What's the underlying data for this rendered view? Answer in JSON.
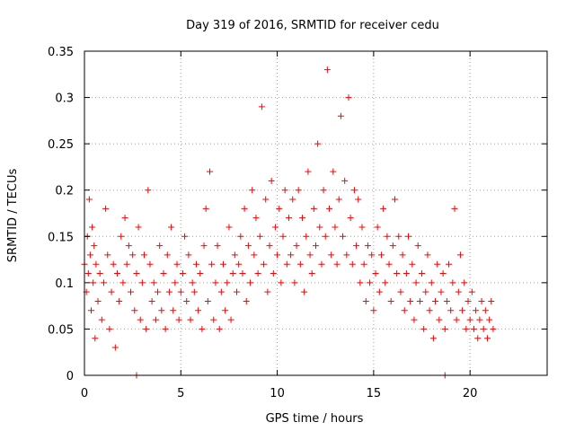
{
  "chart_data": {
    "type": "scatter",
    "title": "Day 319 of 2016, SRMTID for receiver cedu",
    "xlabel": "GPS time / hours",
    "ylabel": "SRMTID / TECUs",
    "xlim": [
      0,
      24
    ],
    "ylim": [
      0,
      0.35
    ],
    "xticks": [
      0,
      5,
      10,
      15,
      20
    ],
    "xtick_labels": [
      "0",
      "5",
      "10",
      "15",
      "20"
    ],
    "yticks": [
      0,
      0.05,
      0.1,
      0.15,
      0.2,
      0.25,
      0.3,
      0.35
    ],
    "ytick_labels": [
      "0",
      "0.05",
      "0.1",
      "0.15",
      "0.2",
      "0.25",
      "0.3",
      "0.35"
    ],
    "grid": true,
    "marker": "+",
    "series": [
      {
        "name": "SRMTID",
        "color": "#ff0000",
        "points": [
          [
            0.0,
            0.12
          ],
          [
            0.1,
            0.09
          ],
          [
            0.15,
            0.15
          ],
          [
            0.2,
            0.11
          ],
          [
            0.25,
            0.19
          ],
          [
            0.3,
            0.13
          ],
          [
            0.35,
            0.07
          ],
          [
            0.4,
            0.16
          ],
          [
            0.45,
            0.1
          ],
          [
            0.5,
            0.14
          ],
          [
            0.55,
            0.04
          ],
          [
            0.6,
            0.12
          ],
          [
            0.7,
            0.08
          ],
          [
            0.8,
            0.11
          ],
          [
            0.9,
            0.06
          ],
          [
            1.0,
            0.1
          ],
          [
            1.1,
            0.18
          ],
          [
            1.2,
            0.13
          ],
          [
            1.3,
            0.05
          ],
          [
            1.4,
            0.09
          ],
          [
            1.5,
            0.12
          ],
          [
            1.6,
            0.03
          ],
          [
            1.7,
            0.11
          ],
          [
            1.8,
            0.08
          ],
          [
            1.9,
            0.15
          ],
          [
            2.0,
            0.1
          ],
          [
            2.1,
            0.17
          ],
          [
            2.2,
            0.12
          ],
          [
            2.3,
            0.14
          ],
          [
            2.4,
            0.09
          ],
          [
            2.5,
            0.13
          ],
          [
            2.6,
            0.07
          ],
          [
            2.7,
            0.11
          ],
          [
            2.8,
            0.16
          ],
          [
            2.9,
            0.06
          ],
          [
            3.0,
            0.1
          ],
          [
            3.1,
            0.13
          ],
          [
            3.2,
            0.05
          ],
          [
            3.3,
            0.2
          ],
          [
            3.4,
            0.12
          ],
          [
            3.5,
            0.08
          ],
          [
            3.6,
            0.1
          ],
          [
            3.7,
            0.06
          ],
          [
            3.8,
            0.09
          ],
          [
            3.9,
            0.14
          ],
          [
            4.0,
            0.07
          ],
          [
            4.1,
            0.11
          ],
          [
            4.2,
            0.05
          ],
          [
            4.3,
            0.13
          ],
          [
            4.4,
            0.09
          ],
          [
            4.5,
            0.16
          ],
          [
            4.6,
            0.07
          ],
          [
            4.7,
            0.1
          ],
          [
            4.8,
            0.12
          ],
          [
            4.9,
            0.06
          ],
          [
            5.0,
            0.09
          ],
          [
            5.1,
            0.11
          ],
          [
            5.2,
            0.15
          ],
          [
            5.3,
            0.08
          ],
          [
            5.4,
            0.13
          ],
          [
            5.5,
            0.06
          ],
          [
            5.6,
            0.1
          ],
          [
            5.7,
            0.09
          ],
          [
            5.8,
            0.12
          ],
          [
            5.9,
            0.07
          ],
          [
            6.0,
            0.11
          ],
          [
            6.1,
            0.05
          ],
          [
            6.2,
            0.14
          ],
          [
            6.3,
            0.18
          ],
          [
            6.4,
            0.08
          ],
          [
            6.5,
            0.22
          ],
          [
            6.6,
            0.12
          ],
          [
            6.7,
            0.06
          ],
          [
            6.8,
            0.1
          ],
          [
            6.9,
            0.14
          ],
          [
            7.0,
            0.05
          ],
          [
            7.1,
            0.09
          ],
          [
            7.2,
            0.12
          ],
          [
            7.3,
            0.07
          ],
          [
            7.4,
            0.1
          ],
          [
            7.5,
            0.16
          ],
          [
            7.6,
            0.06
          ],
          [
            7.7,
            0.11
          ],
          [
            7.8,
            0.13
          ],
          [
            7.9,
            0.09
          ],
          [
            8.0,
            0.12
          ],
          [
            8.1,
            0.15
          ],
          [
            8.2,
            0.11
          ],
          [
            8.3,
            0.18
          ],
          [
            8.4,
            0.08
          ],
          [
            8.5,
            0.14
          ],
          [
            8.6,
            0.1
          ],
          [
            8.7,
            0.2
          ],
          [
            8.8,
            0.13
          ],
          [
            8.9,
            0.17
          ],
          [
            9.0,
            0.11
          ],
          [
            9.1,
            0.15
          ],
          [
            9.2,
            0.29
          ],
          [
            9.3,
            0.12
          ],
          [
            9.4,
            0.19
          ],
          [
            9.5,
            0.09
          ],
          [
            9.6,
            0.14
          ],
          [
            9.7,
            0.21
          ],
          [
            9.8,
            0.11
          ],
          [
            9.9,
            0.16
          ],
          [
            10.0,
            0.13
          ],
          [
            10.1,
            0.18
          ],
          [
            10.2,
            0.1
          ],
          [
            10.3,
            0.15
          ],
          [
            10.4,
            0.2
          ],
          [
            10.5,
            0.12
          ],
          [
            10.6,
            0.17
          ],
          [
            10.7,
            0.13
          ],
          [
            10.8,
            0.19
          ],
          [
            10.9,
            0.1
          ],
          [
            11.0,
            0.14
          ],
          [
            11.1,
            0.2
          ],
          [
            11.2,
            0.12
          ],
          [
            11.3,
            0.17
          ],
          [
            11.4,
            0.09
          ],
          [
            11.5,
            0.15
          ],
          [
            11.6,
            0.22
          ],
          [
            11.7,
            0.13
          ],
          [
            11.8,
            0.11
          ],
          [
            11.9,
            0.18
          ],
          [
            12.0,
            0.14
          ],
          [
            12.1,
            0.25
          ],
          [
            12.2,
            0.16
          ],
          [
            12.3,
            0.12
          ],
          [
            12.4,
            0.2
          ],
          [
            12.5,
            0.15
          ],
          [
            12.6,
            0.33
          ],
          [
            12.7,
            0.18
          ],
          [
            12.8,
            0.13
          ],
          [
            12.9,
            0.22
          ],
          [
            13.0,
            0.16
          ],
          [
            13.1,
            0.12
          ],
          [
            13.2,
            0.19
          ],
          [
            13.3,
            0.28
          ],
          [
            13.4,
            0.15
          ],
          [
            13.5,
            0.21
          ],
          [
            13.6,
            0.13
          ],
          [
            13.7,
            0.3
          ],
          [
            13.8,
            0.17
          ],
          [
            13.9,
            0.12
          ],
          [
            14.0,
            0.2
          ],
          [
            14.1,
            0.14
          ],
          [
            14.2,
            0.19
          ],
          [
            14.3,
            0.1
          ],
          [
            14.4,
            0.16
          ],
          [
            14.5,
            0.12
          ],
          [
            14.6,
            0.08
          ],
          [
            14.7,
            0.14
          ],
          [
            14.8,
            0.1
          ],
          [
            14.9,
            0.13
          ],
          [
            15.0,
            0.07
          ],
          [
            15.1,
            0.11
          ],
          [
            15.2,
            0.16
          ],
          [
            15.3,
            0.09
          ],
          [
            15.4,
            0.13
          ],
          [
            15.5,
            0.18
          ],
          [
            15.6,
            0.1
          ],
          [
            15.7,
            0.15
          ],
          [
            15.8,
            0.12
          ],
          [
            15.9,
            0.08
          ],
          [
            16.0,
            0.14
          ],
          [
            16.1,
            0.19
          ],
          [
            16.2,
            0.11
          ],
          [
            16.3,
            0.15
          ],
          [
            16.4,
            0.09
          ],
          [
            16.5,
            0.13
          ],
          [
            16.6,
            0.07
          ],
          [
            16.7,
            0.11
          ],
          [
            16.8,
            0.15
          ],
          [
            16.9,
            0.08
          ],
          [
            17.0,
            0.12
          ],
          [
            17.1,
            0.06
          ],
          [
            17.2,
            0.1
          ],
          [
            17.3,
            0.14
          ],
          [
            17.4,
            0.08
          ],
          [
            17.5,
            0.11
          ],
          [
            17.6,
            0.05
          ],
          [
            17.7,
            0.09
          ],
          [
            17.8,
            0.13
          ],
          [
            17.9,
            0.07
          ],
          [
            18.0,
            0.1
          ],
          [
            18.1,
            0.04
          ],
          [
            18.2,
            0.08
          ],
          [
            18.3,
            0.12
          ],
          [
            18.4,
            0.06
          ],
          [
            18.5,
            0.09
          ],
          [
            18.6,
            0.11
          ],
          [
            18.7,
            0.05
          ],
          [
            18.8,
            0.08
          ],
          [
            18.9,
            0.12
          ],
          [
            19.0,
            0.07
          ],
          [
            19.1,
            0.1
          ],
          [
            19.2,
            0.18
          ],
          [
            19.3,
            0.06
          ],
          [
            19.4,
            0.09
          ],
          [
            19.5,
            0.13
          ],
          [
            19.6,
            0.07
          ],
          [
            19.7,
            0.1
          ],
          [
            19.8,
            0.05
          ],
          [
            19.9,
            0.08
          ],
          [
            20.0,
            0.06
          ],
          [
            20.1,
            0.09
          ],
          [
            20.2,
            0.05
          ],
          [
            20.3,
            0.07
          ],
          [
            20.4,
            0.04
          ],
          [
            20.5,
            0.06
          ],
          [
            20.6,
            0.08
          ],
          [
            20.7,
            0.05
          ],
          [
            20.8,
            0.07
          ],
          [
            20.9,
            0.04
          ],
          [
            21.0,
            0.06
          ],
          [
            21.1,
            0.08
          ],
          [
            21.2,
            0.05
          ],
          [
            2.7,
            0.0
          ],
          [
            18.7,
            0.0
          ]
        ]
      }
    ]
  }
}
